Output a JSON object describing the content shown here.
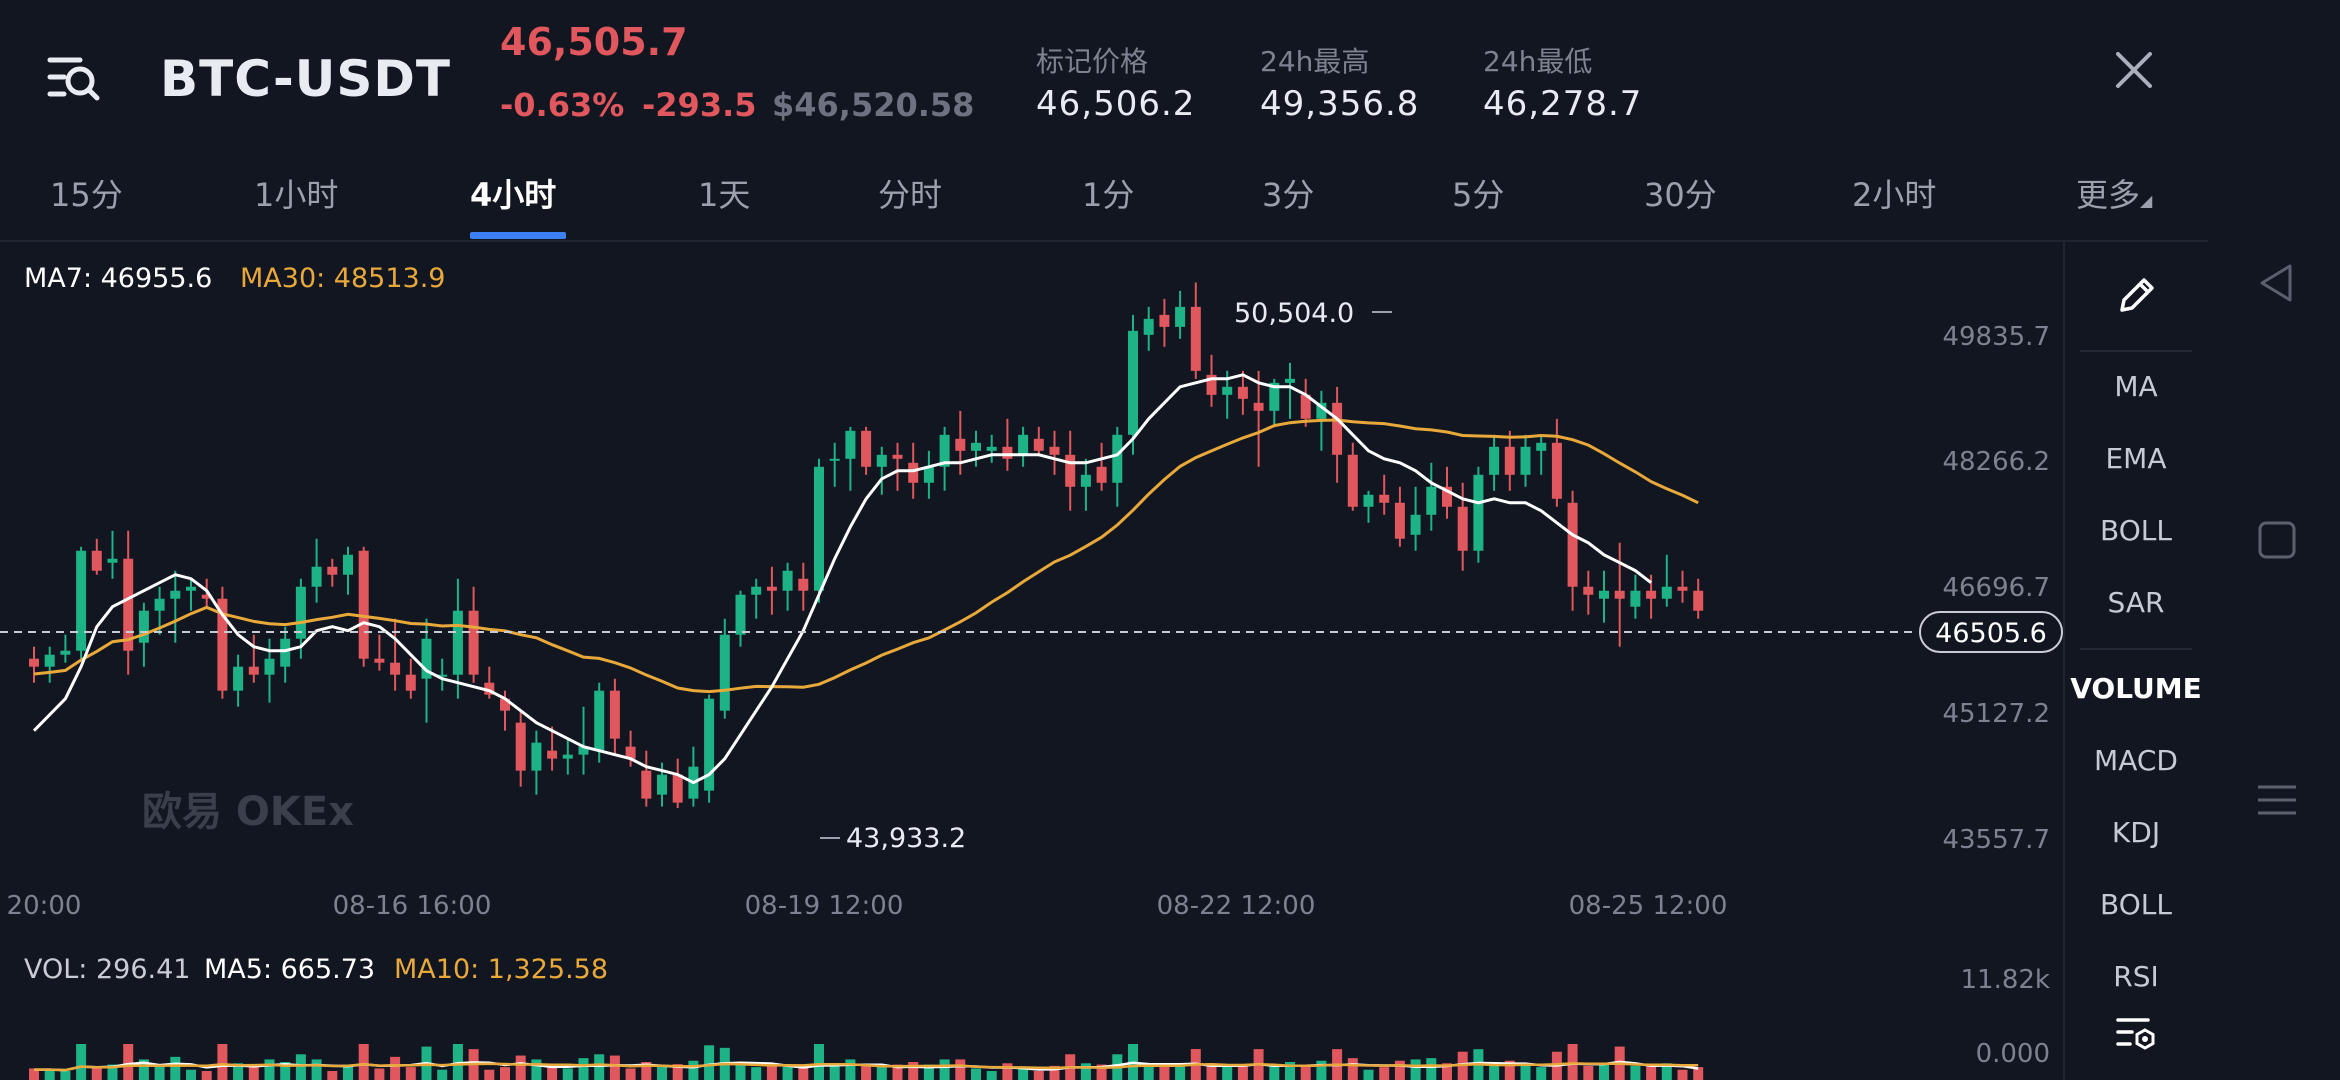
{
  "header": {
    "pair": "BTC-USDT",
    "last_price": "46,505.7",
    "change_pct": "-0.63%",
    "change_abs": "-293.5",
    "usd_price": "$46,520.58",
    "stats": [
      {
        "label": "标记价格",
        "value": "46,506.2"
      },
      {
        "label": "24h最高",
        "value": "49,356.8"
      },
      {
        "label": "24h最低",
        "value": "46,278.7"
      }
    ]
  },
  "tabs": [
    "15分",
    "1小时",
    "4小时",
    "1天",
    "分时",
    "1分",
    "3分",
    "5分",
    "30分",
    "2小时",
    "更多"
  ],
  "active_tab": "4小时",
  "ma_legend": {
    "ma7": "MA7: 46955.6",
    "ma30": "MA30: 48513.9"
  },
  "vol_legend": {
    "vol": "VOL: 296.41",
    "ma5": "MA5: 665.73",
    "ma10": "MA10: 1,325.58"
  },
  "watermark": "欧易 OKEx",
  "high_marker": "50,504.0",
  "low_marker": "43,933.2",
  "current_price_tag": "46505.6",
  "indicator_menu": [
    "MA",
    "EMA",
    "BOLL",
    "SAR",
    "VOLUME",
    "MACD",
    "KDJ",
    "BOLL",
    "RSI"
  ],
  "colors": {
    "up": "#1db386",
    "down": "#e0575d",
    "ma7": "#ffffff",
    "ma30": "#e9a93a",
    "accent": "#3d7ff5"
  },
  "icons": {
    "menu": "list-search-icon",
    "close": "close-icon",
    "draw": "pencil-icon",
    "settings": "list-settings-icon"
  },
  "chart_data": {
    "type": "candlestick",
    "y_ticks": [
      "49835.7",
      "48266.2",
      "46696.7",
      "45127.2",
      "43557.7"
    ],
    "x_ticks": [
      "20:00",
      "08-16 16:00",
      "08-19 12:00",
      "08-22 12:00",
      "08-25 12:00"
    ],
    "vol_ticks": [
      "11.82k",
      "0.000"
    ],
    "ylim": [
      43557.7,
      49835.7
    ],
    "candles": [
      [
        45800,
        45950,
        45500,
        45700
      ],
      [
        45700,
        45950,
        45500,
        45850
      ],
      [
        45850,
        46100,
        45750,
        45900
      ],
      [
        45900,
        47200,
        45800,
        47150
      ],
      [
        47150,
        47300,
        46850,
        46900
      ],
      [
        47000,
        47400,
        46800,
        47050
      ],
      [
        47050,
        47400,
        45600,
        45900
      ],
      [
        46000,
        46500,
        45700,
        46400
      ],
      [
        46400,
        46700,
        46100,
        46550
      ],
      [
        46550,
        46900,
        46000,
        46650
      ],
      [
        46650,
        46800,
        46400,
        46700
      ],
      [
        46600,
        46800,
        46450,
        46550
      ],
      [
        46550,
        46700,
        45300,
        45400
      ],
      [
        45400,
        45850,
        45200,
        45700
      ],
      [
        45700,
        46100,
        45500,
        45600
      ],
      [
        45600,
        46050,
        45250,
        45800
      ],
      [
        45700,
        46200,
        45500,
        46050
      ],
      [
        46050,
        46800,
        45800,
        46700
      ],
      [
        46700,
        47300,
        46500,
        46950
      ],
      [
        46950,
        47050,
        46700,
        46850
      ],
      [
        46850,
        47200,
        46600,
        47100
      ],
      [
        47150,
        47200,
        45700,
        45800
      ],
      [
        45800,
        46100,
        45650,
        45750
      ],
      [
        45750,
        46300,
        45400,
        45600
      ],
      [
        45600,
        45800,
        45300,
        45400
      ],
      [
        45550,
        46300,
        45000,
        46050
      ],
      [
        45600,
        45800,
        45400,
        45600
      ],
      [
        45600,
        46800,
        45300,
        46400
      ],
      [
        46400,
        46700,
        45500,
        45600
      ],
      [
        45500,
        45700,
        45300,
        45350
      ],
      [
        45300,
        45400,
        44900,
        45150
      ],
      [
        45000,
        45150,
        44200,
        44400
      ],
      [
        44400,
        44900,
        44100,
        44750
      ],
      [
        44650,
        44950,
        44400,
        44550
      ],
      [
        44550,
        44800,
        44350,
        44600
      ],
      [
        44600,
        45200,
        44350,
        44700
      ],
      [
        44650,
        45500,
        44500,
        45400
      ],
      [
        45400,
        45550,
        44600,
        44800
      ],
      [
        44700,
        44900,
        44450,
        44550
      ],
      [
        44400,
        44650,
        43950,
        44050
      ],
      [
        44100,
        44500,
        43950,
        44350
      ],
      [
        44350,
        44550,
        43933,
        44000
      ],
      [
        44050,
        44700,
        43950,
        44450
      ],
      [
        44150,
        45350,
        44000,
        45300
      ],
      [
        45150,
        46300,
        45050,
        46100
      ],
      [
        46100,
        46650,
        45950,
        46600
      ],
      [
        46600,
        46800,
        46300,
        46700
      ],
      [
        46700,
        46950,
        46350,
        46650
      ],
      [
        46650,
        47000,
        46400,
        46900
      ],
      [
        46800,
        47000,
        46400,
        46650
      ],
      [
        46650,
        48300,
        46500,
        48200
      ],
      [
        48300,
        48500,
        47950,
        48300
      ],
      [
        48300,
        48700,
        47900,
        48650
      ],
      [
        48650,
        48700,
        48100,
        48200
      ],
      [
        48200,
        48450,
        47850,
        48350
      ],
      [
        48350,
        48500,
        47900,
        48300
      ],
      [
        48250,
        48500,
        47800,
        48000
      ],
      [
        48000,
        48400,
        47800,
        48200
      ],
      [
        48200,
        48700,
        47900,
        48600
      ],
      [
        48550,
        48900,
        48100,
        48400
      ],
      [
        48400,
        48650,
        48200,
        48500
      ],
      [
        48400,
        48600,
        48250,
        48450
      ],
      [
        48450,
        48800,
        48150,
        48300
      ],
      [
        48350,
        48700,
        48200,
        48600
      ],
      [
        48550,
        48700,
        48350,
        48400
      ],
      [
        48450,
        48650,
        48100,
        48350
      ],
      [
        48350,
        48650,
        47650,
        47950
      ],
      [
        47950,
        48300,
        47650,
        48100
      ],
      [
        48200,
        48500,
        47900,
        48000
      ],
      [
        48000,
        48700,
        47700,
        48600
      ],
      [
        48600,
        50100,
        48350,
        49900
      ],
      [
        49850,
        50200,
        49650,
        50050
      ],
      [
        50100,
        50300,
        49700,
        49950
      ],
      [
        49950,
        50400,
        49800,
        50200
      ],
      [
        50200,
        50504,
        49300,
        49400
      ],
      [
        49350,
        49600,
        48950,
        49100
      ],
      [
        49100,
        49400,
        48800,
        49200
      ],
      [
        49200,
        49400,
        48850,
        49050
      ],
      [
        49000,
        49400,
        48200,
        48900
      ],
      [
        48900,
        49300,
        48700,
        49250
      ],
      [
        49250,
        49500,
        48800,
        49300
      ],
      [
        49100,
        49300,
        48700,
        48800
      ],
      [
        48800,
        49150,
        48400,
        49000
      ],
      [
        49000,
        49200,
        48000,
        48350
      ],
      [
        48350,
        48500,
        47650,
        47700
      ],
      [
        47700,
        47900,
        47500,
        47850
      ],
      [
        47850,
        48100,
        47600,
        47750
      ],
      [
        47750,
        47950,
        47200,
        47300
      ],
      [
        47350,
        47950,
        47150,
        47600
      ],
      [
        47600,
        48250,
        47400,
        47950
      ],
      [
        47950,
        48200,
        47550,
        47700
      ],
      [
        47700,
        48000,
        46900,
        47150
      ],
      [
        47150,
        48200,
        47000,
        48100
      ],
      [
        48100,
        48600,
        47900,
        48450
      ],
      [
        48450,
        48650,
        47900,
        48100
      ],
      [
        48100,
        48600,
        47950,
        48450
      ],
      [
        48400,
        48600,
        48100,
        48500
      ],
      [
        48500,
        48800,
        47700,
        47800
      ],
      [
        47750,
        47900,
        46400,
        46700
      ],
      [
        46700,
        46900,
        46350,
        46600
      ],
      [
        46550,
        46900,
        46250,
        46650
      ],
      [
        46650,
        47250,
        45950,
        46550
      ],
      [
        46450,
        46850,
        46300,
        46650
      ],
      [
        46650,
        46850,
        46300,
        46550
      ],
      [
        46550,
        47100,
        46450,
        46700
      ],
      [
        46700,
        46900,
        46500,
        46650
      ],
      [
        46650,
        46800,
        46300,
        46400
      ]
    ],
    "ma7": [
      44900,
      45100,
      45300,
      45700,
      46200,
      46450,
      46550,
      46650,
      46750,
      46850,
      46800,
      46650,
      46350,
      46100,
      45950,
      45900,
      45900,
      45950,
      46150,
      46200,
      46150,
      46250,
      46200,
      46050,
      45850,
      45650,
      45550,
      45500,
      45450,
      45400,
      45300,
      45150,
      45000,
      44900,
      44800,
      44700,
      44650,
      44600,
      44550,
      44450,
      44400,
      44350,
      44250,
      44350,
      44550,
      44850,
      45150,
      45450,
      45800,
      46150,
      46600,
      47050,
      47450,
      47800,
      48050,
      48150,
      48150,
      48200,
      48250,
      48250,
      48300,
      48350,
      48350,
      48350,
      48350,
      48300,
      48250,
      48250,
      48300,
      48350,
      48550,
      48800,
      49000,
      49200,
      49250,
      49300,
      49300,
      49350,
      49250,
      49200,
      49200,
      49100,
      48950,
      48800,
      48600,
      48400,
      48300,
      48250,
      48150,
      48000,
      47900,
      47800,
      47750,
      47800,
      47750,
      47750,
      47650,
      47500,
      47350,
      47250,
      47100,
      47000,
      46900,
      46750
    ]
  }
}
